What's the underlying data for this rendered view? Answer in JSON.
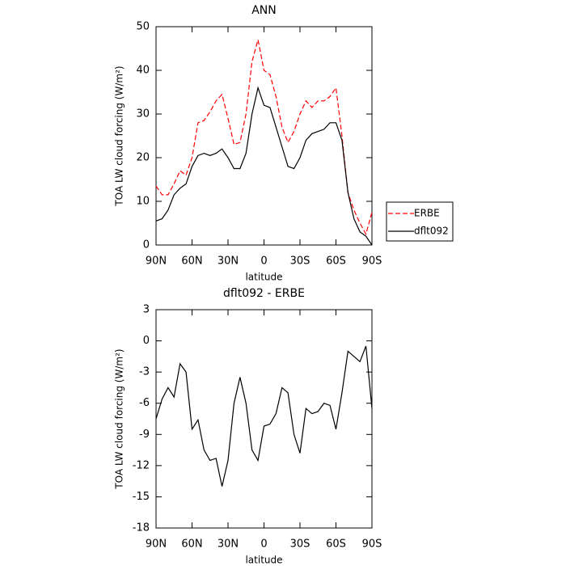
{
  "chart_data": [
    {
      "type": "line",
      "title": "ANN",
      "x_label": "latitude",
      "y_label": "TOA LW cloud forcing (W/m²)",
      "x": [
        90,
        85,
        80,
        75,
        70,
        65,
        60,
        55,
        50,
        45,
        40,
        35,
        30,
        25,
        20,
        15,
        10,
        5,
        0,
        -5,
        -10,
        -15,
        -20,
        -25,
        -30,
        -35,
        -40,
        -45,
        -50,
        -55,
        -60,
        -65,
        -70,
        -75,
        -80,
        -85,
        -90
      ],
      "series": [
        {
          "name": "ERBE",
          "color": "#ff0000",
          "dash": "6,3",
          "values": [
            13.5,
            11.5,
            11.5,
            14,
            17,
            16,
            20,
            28,
            28.5,
            30.5,
            33,
            34.5,
            29,
            23,
            23.5,
            30,
            42,
            47,
            40,
            39,
            34,
            27,
            23.5,
            26,
            30,
            33,
            31.5,
            33,
            33,
            34,
            36,
            25,
            12,
            8,
            5,
            2.5,
            7.5
          ]
        },
        {
          "name": "dflt092",
          "color": "#000000",
          "dash": "",
          "values": [
            5.5,
            6,
            8,
            11.5,
            13,
            14,
            18,
            20.5,
            21,
            20.5,
            21,
            22,
            20,
            17.5,
            17.5,
            21,
            30,
            36,
            32,
            31.5,
            27,
            22.5,
            18,
            17.5,
            20,
            24,
            25.5,
            26,
            26.5,
            28,
            28,
            24,
            12,
            6,
            3,
            2,
            0
          ]
        }
      ],
      "xlim": [
        90,
        -90
      ],
      "xticks": [
        {
          "value": 90,
          "label": "90N"
        },
        {
          "value": 60,
          "label": "60N"
        },
        {
          "value": 30,
          "label": "30N"
        },
        0,
        {
          "value": -30,
          "label": "30S"
        },
        {
          "value": -60,
          "label": "60S"
        },
        {
          "value": -90,
          "label": "90S"
        }
      ],
      "ylim": [
        0,
        50
      ],
      "yticks": [
        0,
        10,
        20,
        30,
        40,
        50
      ],
      "legend": "outside-right"
    },
    {
      "type": "line",
      "title": "dflt092 - ERBE",
      "x_label": "latitude",
      "y_label": "TOA LW cloud forcing (W/m²)",
      "x": [
        90,
        85,
        80,
        75,
        70,
        65,
        60,
        55,
        50,
        45,
        40,
        35,
        30,
        25,
        20,
        15,
        10,
        5,
        0,
        -5,
        -10,
        -15,
        -20,
        -25,
        -30,
        -35,
        -40,
        -45,
        -50,
        -55,
        -60,
        -65,
        -70,
        -75,
        -80,
        -85,
        -90
      ],
      "series": [
        {
          "color": "#000000",
          "values": [
            -7.5,
            -5.6,
            -4.5,
            -5.4,
            -2.2,
            -3,
            -8.5,
            -7.6,
            -10.5,
            -11.5,
            -11.3,
            -14,
            -11.5,
            -6,
            -3.5,
            -6,
            -10.5,
            -11.5,
            -8.2,
            -8,
            -7,
            -4.5,
            -5,
            -9,
            -10.8,
            -6.5,
            -7,
            -6.8,
            -6,
            -6.2,
            -8.5,
            -5,
            -1,
            -1.5,
            -2,
            -0.5,
            -6.5
          ]
        }
      ],
      "xlim": [
        90,
        -90
      ],
      "xticks": [
        {
          "value": 90,
          "label": "90N"
        },
        {
          "value": 60,
          "label": "60N"
        },
        {
          "value": 30,
          "label": "30N"
        },
        0,
        {
          "value": -30,
          "label": "30S"
        },
        {
          "value": -60,
          "label": "60S"
        },
        {
          "value": -90,
          "label": "90S"
        }
      ],
      "ylim": [
        -18,
        3
      ],
      "yticks": [
        -18,
        -15,
        -12,
        -9,
        -6,
        -3,
        0,
        3
      ]
    }
  ]
}
